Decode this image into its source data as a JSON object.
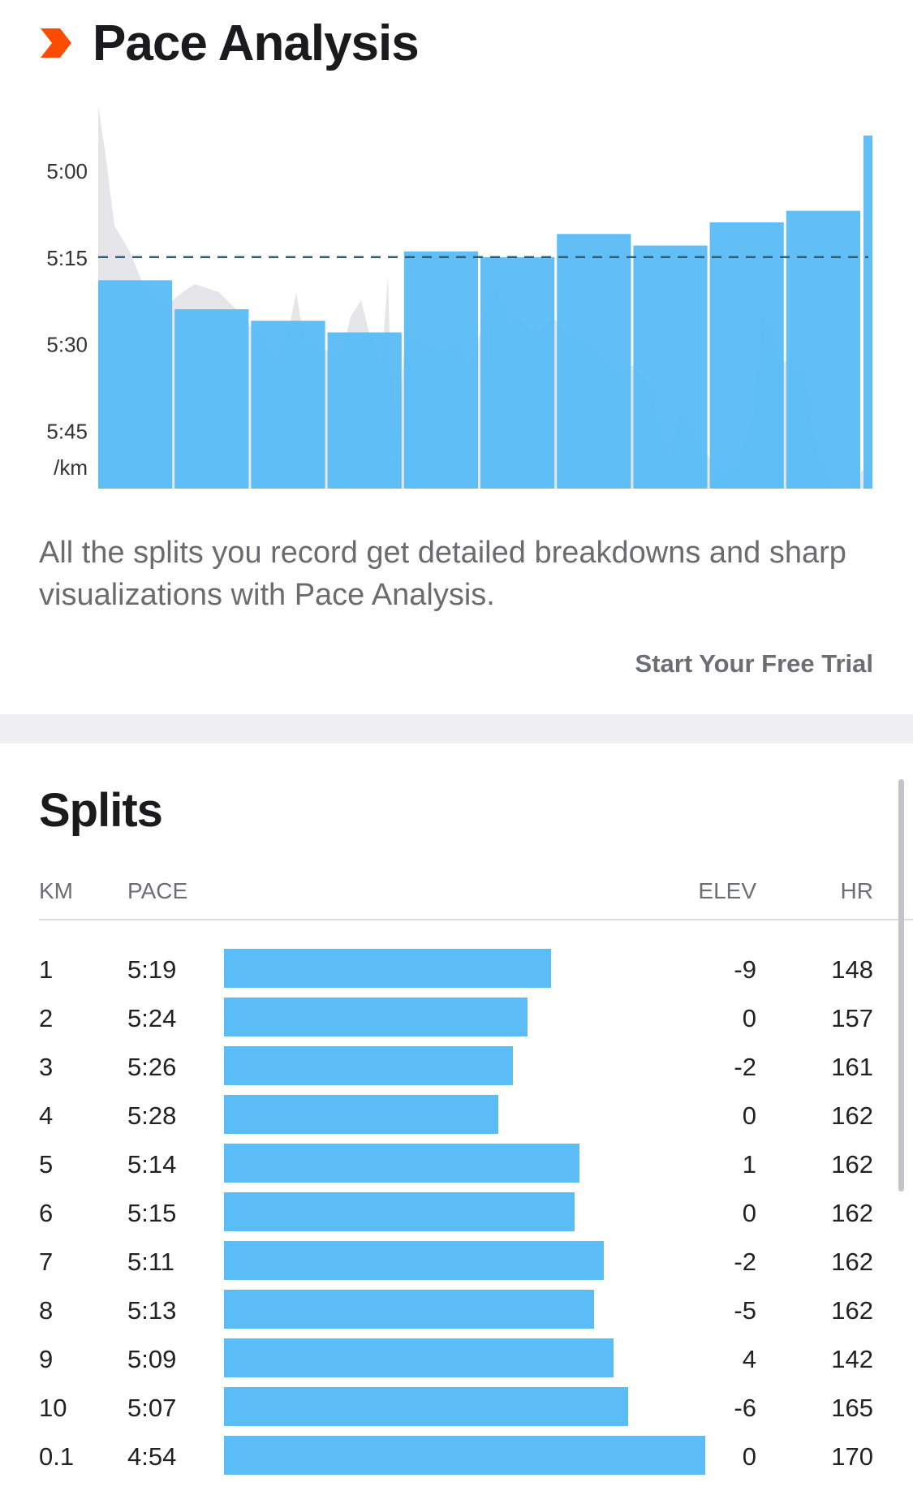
{
  "header": {
    "title": "Pace Analysis",
    "icon": "chevron-right-icon",
    "accent": "#fc4c02"
  },
  "chart_data": {
    "type": "bar",
    "y_tick_labels": [
      "5:00",
      "5:15",
      "5:30",
      "5:45"
    ],
    "y_unit_label": "/km",
    "ylim_seconds": [
      286,
      355
    ],
    "reference_line_seconds": 315,
    "categories": [
      "1",
      "2",
      "3",
      "4",
      "5",
      "6",
      "7",
      "8",
      "9",
      "10",
      "0.1"
    ],
    "values_seconds": [
      319,
      324,
      326,
      328,
      314,
      315,
      311,
      313,
      309,
      307,
      294
    ],
    "bar_color": "#5bbcf6",
    "background_area_color": "#e6e6ea",
    "grid": false
  },
  "description": "All the splits you record get detailed breakdowns and sharp visualizations with Pace Analysis.",
  "cta_label": "Start Your Free Trial",
  "splits": {
    "title": "Splits",
    "headers": {
      "km": "KM",
      "pace": "PACE",
      "elev": "ELEV",
      "hr": "HR"
    },
    "rows": [
      {
        "km": "1",
        "pace": "5:19",
        "elev": "-9",
        "hr": "148",
        "bar_fraction": 0.56
      },
      {
        "km": "2",
        "pace": "5:24",
        "elev": "0",
        "hr": "157",
        "bar_fraction": 0.519
      },
      {
        "km": "3",
        "pace": "5:26",
        "elev": "-2",
        "hr": "161",
        "bar_fraction": 0.494
      },
      {
        "km": "4",
        "pace": "5:28",
        "elev": "0",
        "hr": "162",
        "bar_fraction": 0.469
      },
      {
        "km": "5",
        "pace": "5:14",
        "elev": "1",
        "hr": "162",
        "bar_fraction": 0.609
      },
      {
        "km": "6",
        "pace": "5:15",
        "elev": "0",
        "hr": "162",
        "bar_fraction": 0.6
      },
      {
        "km": "7",
        "pace": "5:11",
        "elev": "-2",
        "hr": "162",
        "bar_fraction": 0.65
      },
      {
        "km": "8",
        "pace": "5:13",
        "elev": "-5",
        "hr": "162",
        "bar_fraction": 0.634
      },
      {
        "km": "9",
        "pace": "5:09",
        "elev": "4",
        "hr": "142",
        "bar_fraction": 0.666
      },
      {
        "km": "10",
        "pace": "5:07",
        "elev": "-6",
        "hr": "165",
        "bar_fraction": 0.691
      },
      {
        "km": "0.1",
        "pace": "4:54",
        "elev": "0",
        "hr": "170",
        "bar_fraction": 0.823
      }
    ]
  }
}
